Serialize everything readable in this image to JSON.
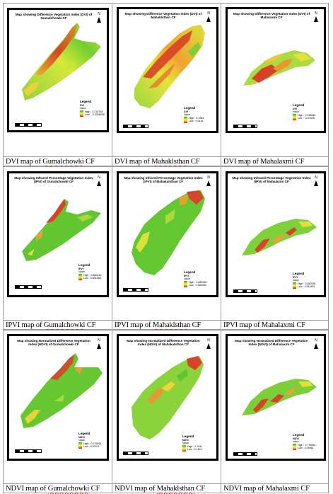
{
  "rows": [
    {
      "maps": [
        {
          "title": "Map showing Difference Vegetation Index (DVI) of Gumalchowki CF",
          "legend_title": "Legend",
          "index": "DVI",
          "value_label": "Value",
          "high": "High : 0.219746",
          "low": "Low : -0.0266995",
          "caption_pre": "DVI map of ",
          "caption_name": "Gumalchowki",
          "caption_post": " CF"
        },
        {
          "title": "Map showing Difference Vegetation Index (DVI) of Mahaklsthan CF",
          "legend_title": "Legend",
          "index": "DVI",
          "value_label": "Value",
          "high": "High : 0.1965",
          "low": "Low : 0.0161",
          "caption_pre": "DVI map of ",
          "caption_name": "Mahaklsthan",
          "caption_post": " CF"
        },
        {
          "title": "Map showing Difference Vegetation Index (DVI) of Mahalaxmi CF",
          "legend_title": "Legend",
          "index": "DVI",
          "value_label": "Value",
          "high": "High : 0.236554",
          "low": "Low : -0.07845",
          "caption_pre": "DVI map of ",
          "caption_name": "Mahalaxmi",
          "caption_post": " CF"
        }
      ]
    },
    {
      "maps": [
        {
          "title": "Map showing Infrared Percentage Vegetation Index (IPVI) of Gumalchowki CF",
          "legend_title": "Legend",
          "index": "IPVI",
          "value_label": "Value",
          "high": "High : 0.880443",
          "low": "Low : 0.501868",
          "caption_pre": "IPVI map of ",
          "caption_name": "Gumalchowki",
          "caption_post": " CF"
        },
        {
          "title": "Map showing Infrared Percentage Vegetation Index (IPVI) of Mahakalsthan CF",
          "legend_title": "Legend",
          "index": "IPVI",
          "value_label": "Value",
          "high": "High : 0.882055",
          "low": "Low : 0.582065",
          "caption_pre": "IPVI map of ",
          "caption_name": "Mahaklsthan",
          "caption_post": " CF"
        },
        {
          "title": "Map showing Infrared Percentage Vegetation Index (IPVI) of Mahalaxmi CF",
          "legend_title": "Legend",
          "index": "IPVI",
          "value_label": "Value",
          "high": "High : 0.882535",
          "low": "Low : 0.514831",
          "caption_pre": "IPVI map of ",
          "caption_name": "Mahalaxmi",
          "caption_post": " CF"
        }
      ]
    },
    {
      "maps": [
        {
          "title": "Map showing Normalized Difference Vegetation Index (NDVI) of Gumalchowki CF",
          "legend_title": "Legend",
          "index": "NDVI",
          "value_label": "Value",
          "high": "High : 0.775093",
          "low": "Low : 0.00371",
          "caption_pre": "NDVI map of ",
          "caption_name": "Gumalchowki",
          "caption_post": " CF"
        },
        {
          "title": "Map showing Normalized Difference Vegetation Index (NDVI) of Mahakalsthan CF",
          "legend_title": "Legend",
          "index": "NDVI",
          "value_label": "Value",
          "high": "High : 0.7641",
          "low": "Low : 0.1641",
          "caption_pre": "NDVI map of ",
          "caption_name": "Mahaklsthan",
          "caption_post": " CF"
        },
        {
          "title": "Map showing Normalized Difference Vegetation Index (NDVI) of Mahalaxmi CF",
          "legend_title": "Legend",
          "index": "NDVI",
          "value_label": "Value",
          "high": "High : 0.776069",
          "low": "Low : 0.05961",
          "caption_pre": "NDVI map of ",
          "caption_name": "Mahalaxmi",
          "caption_post": " CF"
        }
      ]
    }
  ],
  "north_label": "N",
  "colors": {
    "low": "#1fb31f",
    "mid": "#ffff33",
    "high": "#e02020",
    "frame": "#000000",
    "grid": "#9a9a9a",
    "spellcheck": "#dd2222"
  }
}
